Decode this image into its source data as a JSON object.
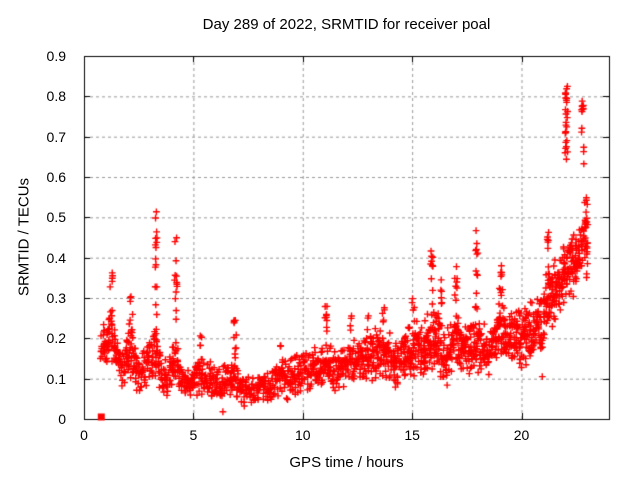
{
  "chart_data": {
    "type": "scatter",
    "title": "Day 289 of 2022, SRMTID for receiver poal",
    "xlabel": "GPS time / hours",
    "ylabel": "SRMTID / TECUs",
    "xlim": [
      0,
      24
    ],
    "ylim": [
      0,
      0.9
    ],
    "xticks": [
      0,
      5,
      10,
      15,
      20
    ],
    "xtick_labels": [
      "0",
      "5",
      "10",
      "15",
      "20"
    ],
    "yticks": [
      0,
      0.1,
      0.2,
      0.3,
      0.4,
      0.5,
      0.6,
      0.7,
      0.8,
      0.9
    ],
    "ytick_labels": [
      "0",
      "0.1",
      "0.2",
      "0.3",
      "0.4",
      "0.5",
      "0.6",
      "0.7",
      "0.8",
      "0.9"
    ],
    "grid": true,
    "grid_style": "dashed",
    "grid_color": "#999999",
    "border_color": "#000000",
    "marker": "plus",
    "marker_size_px": 7,
    "marker_color": "#ff0000",
    "series_name": "SRMTID",
    "x_data_range": [
      0.8,
      23.1
    ],
    "band_profile": [
      [
        0.8,
        0.13,
        0.22
      ],
      [
        1.0,
        0.12,
        0.26
      ],
      [
        1.2,
        0.14,
        0.31
      ],
      [
        1.4,
        0.11,
        0.24
      ],
      [
        1.6,
        0.08,
        0.18
      ],
      [
        1.8,
        0.07,
        0.16
      ],
      [
        2.0,
        0.09,
        0.24
      ],
      [
        2.15,
        0.1,
        0.3
      ],
      [
        2.35,
        0.07,
        0.2
      ],
      [
        2.6,
        0.06,
        0.16
      ],
      [
        2.9,
        0.08,
        0.19
      ],
      [
        3.1,
        0.09,
        0.22
      ],
      [
        3.3,
        0.1,
        0.25
      ],
      [
        3.5,
        0.06,
        0.16
      ],
      [
        3.75,
        0.05,
        0.15
      ],
      [
        4.0,
        0.07,
        0.18
      ],
      [
        4.2,
        0.08,
        0.22
      ],
      [
        4.4,
        0.05,
        0.15
      ],
      [
        4.7,
        0.04,
        0.13
      ],
      [
        5.0,
        0.05,
        0.15
      ],
      [
        5.3,
        0.06,
        0.17
      ],
      [
        5.6,
        0.05,
        0.16
      ],
      [
        5.9,
        0.04,
        0.14
      ],
      [
        6.2,
        0.04,
        0.13
      ],
      [
        6.5,
        0.05,
        0.14
      ],
      [
        6.9,
        0.05,
        0.17
      ],
      [
        7.2,
        0.03,
        0.12
      ],
      [
        7.5,
        0.03,
        0.11
      ],
      [
        7.8,
        0.03,
        0.1
      ],
      [
        8.1,
        0.04,
        0.12
      ],
      [
        8.5,
        0.04,
        0.13
      ],
      [
        8.9,
        0.05,
        0.15
      ],
      [
        9.3,
        0.04,
        0.16
      ],
      [
        9.7,
        0.05,
        0.17
      ],
      [
        10.1,
        0.06,
        0.17
      ],
      [
        10.5,
        0.06,
        0.18
      ],
      [
        10.9,
        0.07,
        0.19
      ],
      [
        11.1,
        0.08,
        0.2
      ],
      [
        11.4,
        0.06,
        0.17
      ],
      [
        11.7,
        0.07,
        0.18
      ],
      [
        12.0,
        0.08,
        0.2
      ],
      [
        12.4,
        0.09,
        0.21
      ],
      [
        12.8,
        0.09,
        0.22
      ],
      [
        13.2,
        0.09,
        0.23
      ],
      [
        13.6,
        0.1,
        0.25
      ],
      [
        13.9,
        0.09,
        0.23
      ],
      [
        14.3,
        0.07,
        0.2
      ],
      [
        14.7,
        0.08,
        0.23
      ],
      [
        15.0,
        0.09,
        0.27
      ],
      [
        15.4,
        0.1,
        0.24
      ],
      [
        15.8,
        0.1,
        0.29
      ],
      [
        16.2,
        0.1,
        0.28
      ],
      [
        16.6,
        0.08,
        0.22
      ],
      [
        17.0,
        0.12,
        0.29
      ],
      [
        17.4,
        0.1,
        0.24
      ],
      [
        17.8,
        0.11,
        0.26
      ],
      [
        18.1,
        0.11,
        0.25
      ],
      [
        18.5,
        0.1,
        0.24
      ],
      [
        18.8,
        0.13,
        0.27
      ],
      [
        19.1,
        0.15,
        0.33
      ],
      [
        19.4,
        0.13,
        0.28
      ],
      [
        19.8,
        0.13,
        0.28
      ],
      [
        20.2,
        0.12,
        0.29
      ],
      [
        20.6,
        0.13,
        0.3
      ],
      [
        21.0,
        0.15,
        0.34
      ],
      [
        21.3,
        0.2,
        0.43
      ],
      [
        21.6,
        0.22,
        0.39
      ],
      [
        21.9,
        0.26,
        0.45
      ],
      [
        22.2,
        0.29,
        0.46
      ],
      [
        22.5,
        0.29,
        0.47
      ],
      [
        22.8,
        0.37,
        0.52
      ],
      [
        23.0,
        0.33,
        0.52
      ],
      [
        23.1,
        0.3,
        0.48
      ]
    ],
    "spikes": [
      [
        1.25,
        0.31,
        0.375,
        5
      ],
      [
        2.15,
        0.28,
        0.31,
        3
      ],
      [
        3.3,
        0.25,
        0.52,
        15
      ],
      [
        4.2,
        0.24,
        0.48,
        13
      ],
      [
        5.35,
        0.17,
        0.22,
        4
      ],
      [
        6.9,
        0.16,
        0.27,
        9
      ],
      [
        9.0,
        0.15,
        0.19,
        3
      ],
      [
        11.05,
        0.19,
        0.3,
        9
      ],
      [
        12.2,
        0.21,
        0.27,
        4
      ],
      [
        13.0,
        0.22,
        0.26,
        3
      ],
      [
        13.7,
        0.24,
        0.28,
        5
      ],
      [
        15.05,
        0.26,
        0.31,
        4
      ],
      [
        15.9,
        0.28,
        0.42,
        11
      ],
      [
        16.35,
        0.27,
        0.35,
        6
      ],
      [
        17.0,
        0.28,
        0.38,
        8
      ],
      [
        17.95,
        0.26,
        0.51,
        13
      ],
      [
        19.05,
        0.32,
        0.38,
        7
      ],
      [
        21.2,
        0.42,
        0.47,
        6
      ],
      [
        22.05,
        0.63,
        0.83,
        26
      ],
      [
        22.8,
        0.63,
        0.8,
        13
      ],
      [
        22.95,
        0.46,
        0.56,
        8
      ]
    ],
    "isolated_points": [
      [
        6.35,
        0.018
      ],
      [
        16.6,
        0.084
      ],
      [
        20.95,
        0.105
      ]
    ],
    "near_zero_cluster": {
      "x": 0.79,
      "y": 0.005,
      "shape": "filled-square"
    }
  }
}
